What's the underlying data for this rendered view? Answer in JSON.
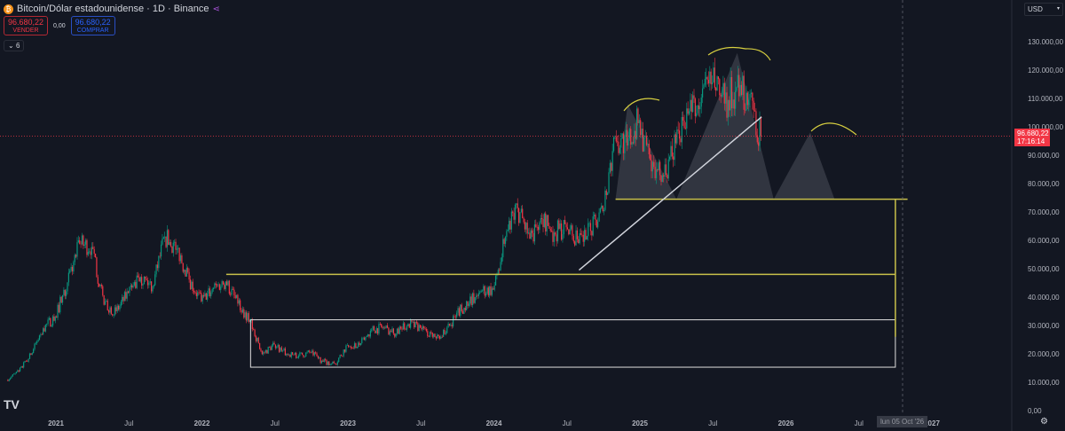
{
  "header": {
    "title": "Bitcoin/Dólar estadounidense · 1D · Binance",
    "coin_icon": "bitcoin-icon",
    "share_icon": "share-icon"
  },
  "trade": {
    "sell_price": "96.680,22",
    "sell_label": "VENDER",
    "spread": "0,00",
    "buy_price": "96.680,22",
    "buy_label": "COMPRAR"
  },
  "indicators": {
    "label": "6"
  },
  "currency": {
    "label": "USD"
  },
  "price_tag": {
    "price": "96.680,22",
    "countdown": "17:16:14"
  },
  "crosshair_date": "lun 05 Oct '26",
  "colors": {
    "up": "#089981",
    "down": "#f23645",
    "background": "#131722",
    "level": "#c8c04a",
    "trend": "#d1d4dc"
  },
  "chart_data": {
    "type": "candlestick",
    "ylim": [
      0,
      140000
    ],
    "y_ticks": [
      "0,00",
      "10.000,00",
      "20.000,00",
      "30.000,00",
      "40.000,00",
      "50.000,00",
      "60.000,00",
      "70.000,00",
      "80.000,00",
      "90.000,00",
      "100.000,00",
      "110.000,00",
      "120.000,00",
      "130.000,00"
    ],
    "y_tick_values": [
      0,
      10000,
      20000,
      30000,
      40000,
      50000,
      60000,
      70000,
      80000,
      90000,
      100000,
      110000,
      120000,
      130000
    ],
    "x_ticks": [
      "2021",
      "Jul",
      "2022",
      "Jul",
      "2023",
      "Jul",
      "2024",
      "Jul",
      "2025",
      "Jul",
      "2026",
      "Jul",
      "2027"
    ],
    "x_tick_dates": [
      "2021-01",
      "2021-07",
      "2022-01",
      "2022-07",
      "2023-01",
      "2023-07",
      "2024-01",
      "2024-07",
      "2025-01",
      "2025-07",
      "2026-01",
      "2026-07",
      "2027-01"
    ],
    "monthly_close": {
      "start": "2020-09",
      "open": 10800,
      "values": [
        10800,
        13800,
        19700,
        29000,
        33100,
        45200,
        58800,
        57700,
        37300,
        35000,
        41500,
        47100,
        43800,
        61300,
        57000,
        46200,
        38500,
        43200,
        45500,
        37700,
        31800,
        19900,
        23300,
        20000,
        19400,
        20500,
        17200,
        16500,
        23100,
        23100,
        28500,
        29200,
        27200,
        30500,
        29200,
        26000,
        27000,
        34500,
        37700,
        42300,
        42600,
        61200,
        71300,
        60600,
        67500,
        62700,
        64600,
        59000,
        63300,
        70300,
        96400,
        93400,
        102400,
        84300,
        82500,
        94200,
        104600,
        107100,
        115700,
        108200,
        114000,
        109500,
        96680
      ]
    },
    "last_price": 96680.22,
    "annotations": {
      "levels": [
        {
          "price": 74500,
          "from": "2024-11",
          "to": "2026-11"
        },
        {
          "price": 48000,
          "from": "2022-03",
          "to": "2026-10"
        }
      ],
      "range_box": {
        "from": "2022-05",
        "to": "2026-10",
        "top": 32000,
        "bottom": 15300
      },
      "trendline": {
        "from": [
          "2024-08",
          49500
        ],
        "to": [
          "2025-11",
          103500
        ]
      },
      "head_and_shoulders": [
        [
          [
            "2024-11",
            74500
          ],
          [
            "2024-12",
            108000
          ],
          [
            "2025-04",
            74500
          ]
        ],
        [
          [
            "2025-04",
            74500
          ],
          [
            "2025-09",
            126000
          ],
          [
            "2025-12",
            74500
          ]
        ],
        [
          [
            "2025-12",
            74500
          ],
          [
            "2026-03",
            98000
          ],
          [
            "2026-05",
            74500
          ]
        ]
      ],
      "projection_line": {
        "date": "2026-10",
        "from": 74500,
        "to": 26000
      }
    }
  }
}
